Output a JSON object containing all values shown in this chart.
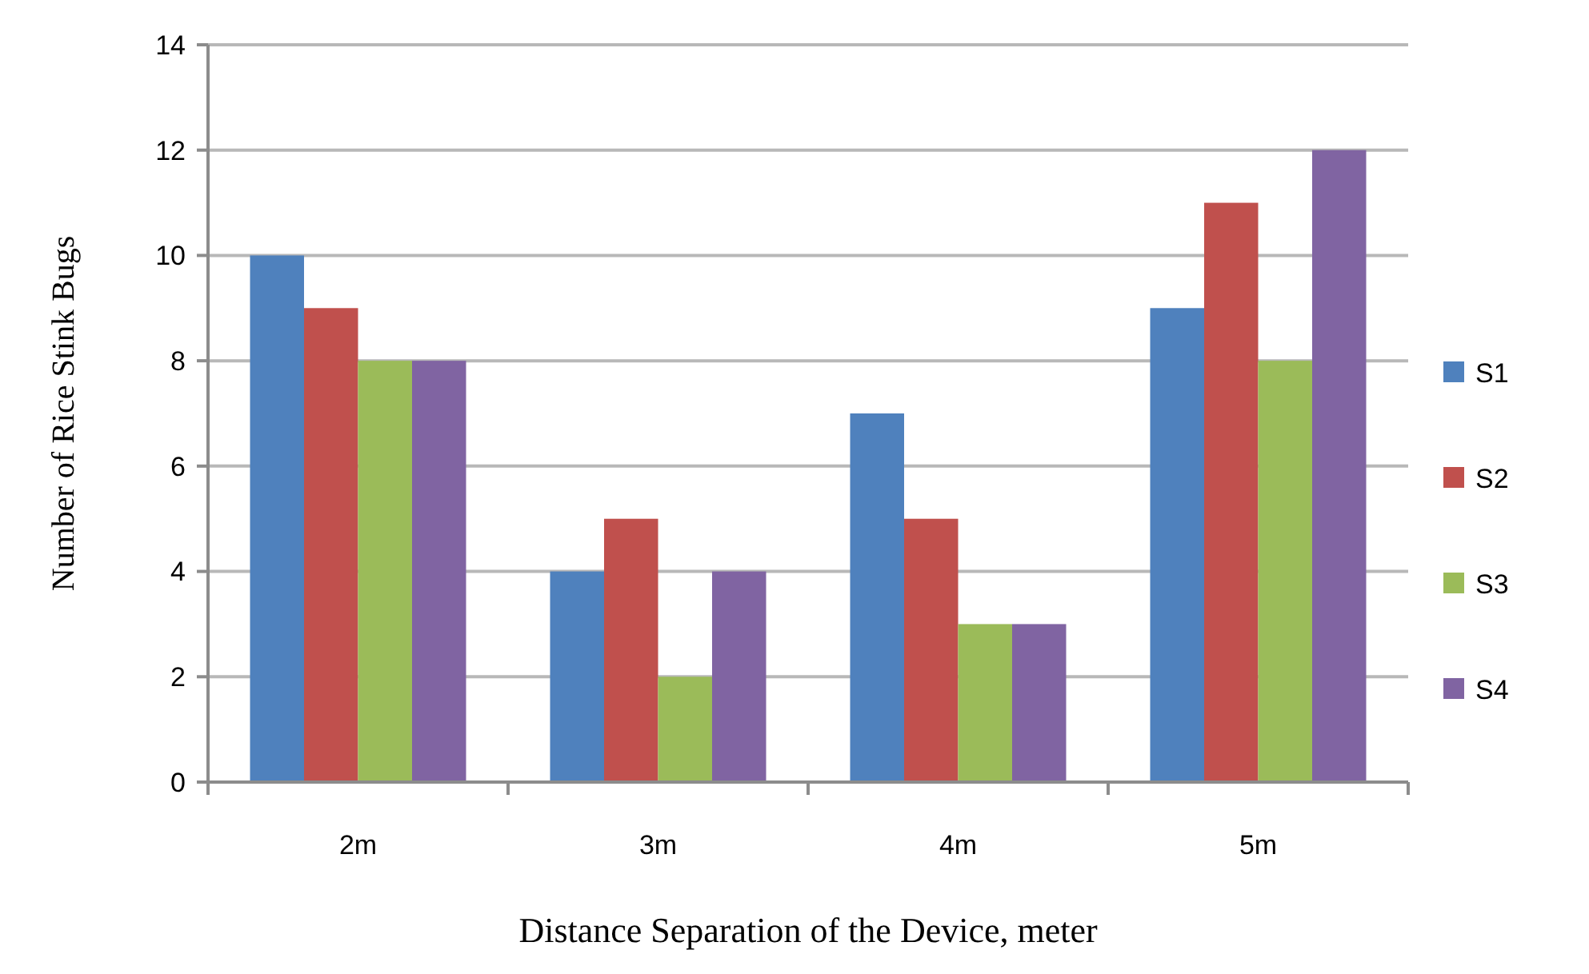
{
  "chart_data": {
    "type": "bar",
    "xlabel": "Distance Separation of the Device, meter",
    "ylabel": "Number of Rice Stink Bugs",
    "categories": [
      "2m",
      "3m",
      "4m",
      "5m"
    ],
    "series": [
      {
        "name": "S1",
        "color": "#4f81bd",
        "values": [
          10,
          4,
          7,
          9
        ]
      },
      {
        "name": "S2",
        "color": "#c0504d",
        "values": [
          9,
          5,
          5,
          11
        ]
      },
      {
        "name": "S3",
        "color": "#9bbb59",
        "values": [
          8,
          2,
          3,
          8
        ]
      },
      {
        "name": "S4",
        "color": "#8064a2",
        "values": [
          8,
          4,
          3,
          12
        ]
      }
    ],
    "ylim": [
      0,
      14
    ],
    "yticks": [
      0,
      2,
      4,
      6,
      8,
      10,
      12,
      14
    ],
    "grid": "y",
    "legend": "right"
  }
}
